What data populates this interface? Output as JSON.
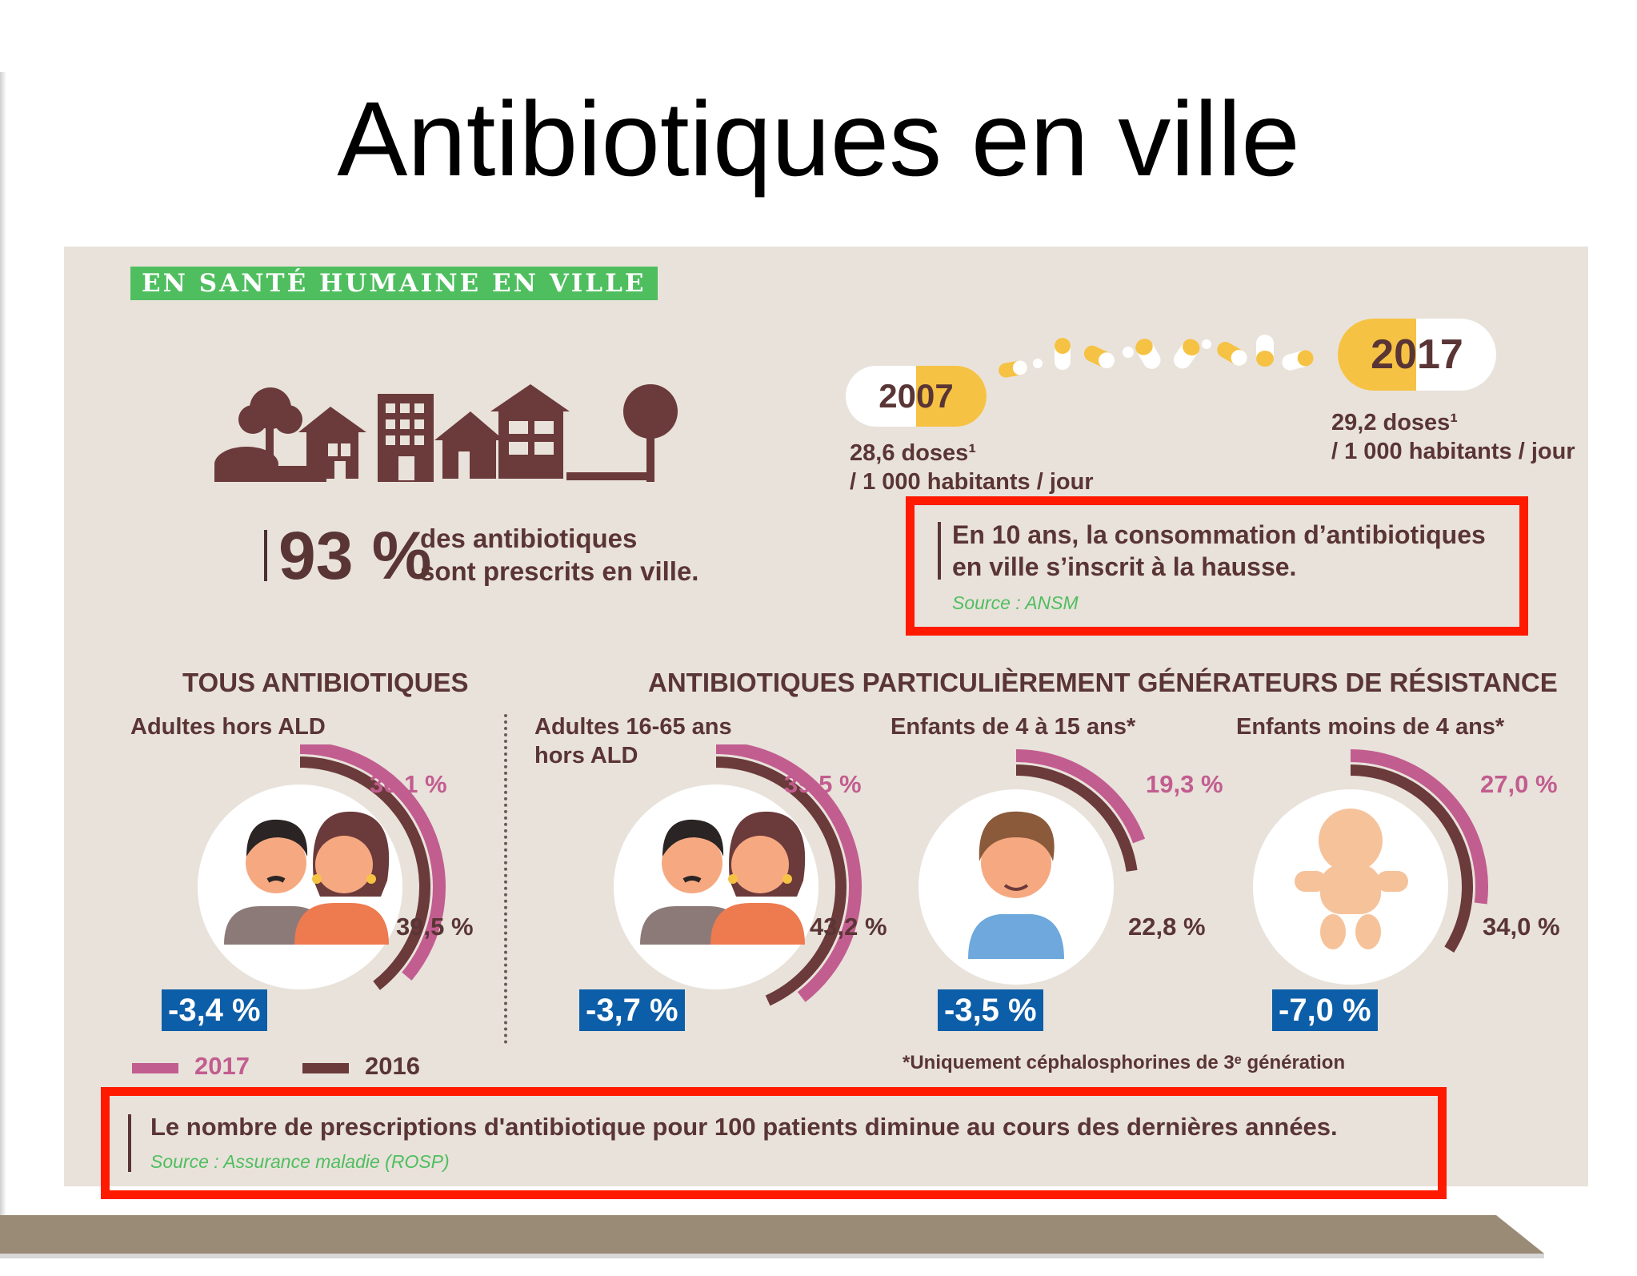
{
  "title": "Antibiotiques en ville",
  "section_label": "EN SANTÉ HUMAINE EN VILLE",
  "stat_93": {
    "value": "93 %",
    "line1": "des antibiotiques",
    "line2": "sont prescrits en ville."
  },
  "timeline": {
    "start": {
      "year": "2007",
      "doses_line1": "28,6 doses¹",
      "doses_line2": "/ 1 000 habitants / jour"
    },
    "end": {
      "year": "2017",
      "doses_line1": "29,2 doses¹",
      "doses_line2": "/ 1 000 habitants / jour"
    }
  },
  "quote_top": {
    "line1": "En 10 ans, la consommation d’antibiotiques",
    "line2": "en ville s’inscrit à la hausse.",
    "source": "Source : ANSM"
  },
  "headers": {
    "all": "TOUS ANTIBIOTIQUES",
    "resistance": "ANTIBIOTIQUES PARTICULIÈREMENT GÉNÉRATEURS DE RÉSISTANCE"
  },
  "groups": [
    {
      "label_line1": "Adultes hors ALD",
      "label_line2": "",
      "v2017": "36,1 %",
      "v2016": "39,5 %",
      "change": "-3,4 %",
      "f2017": 0.361,
      "f2016": 0.395,
      "icon": "couple-icon"
    },
    {
      "label_line1": "Adultes 16-65 ans",
      "label_line2": "hors ALD",
      "v2017": "39,5 %",
      "v2016": "43,2 %",
      "change": "-3,7 %",
      "f2017": 0.395,
      "f2016": 0.432,
      "icon": "couple-icon"
    },
    {
      "label_line1": "Enfants de 4 à 15 ans*",
      "label_line2": "",
      "v2017": "19,3 %",
      "v2016": "22,8 %",
      "change": "-3,5 %",
      "f2017": 0.193,
      "f2016": 0.228,
      "icon": "boy-icon"
    },
    {
      "label_line1": "Enfants moins de 4 ans*",
      "label_line2": "",
      "v2017": "27,0 %",
      "v2016": "34,0 %",
      "change": "-7,0 %",
      "f2017": 0.27,
      "f2016": 0.34,
      "icon": "baby-icon"
    }
  ],
  "legend": {
    "a": "2017",
    "b": "2016"
  },
  "footnote": "*Uniquement céphalosphorines de 3ᵉ génération",
  "quote_bottom": {
    "text": "Le nombre de prescriptions d'antibiotique pour 100 patients diminue au cours des dernières années.",
    "source": "Source : Assurance maladie (ROSP)"
  },
  "colors": {
    "pink": "#c25d90",
    "dark": "#6b3a3a",
    "badge": "#0d5ea8",
    "highlight": "#ff1a00",
    "label_green": "#4fbe5f",
    "pill_yellow": "#f6c244"
  }
}
